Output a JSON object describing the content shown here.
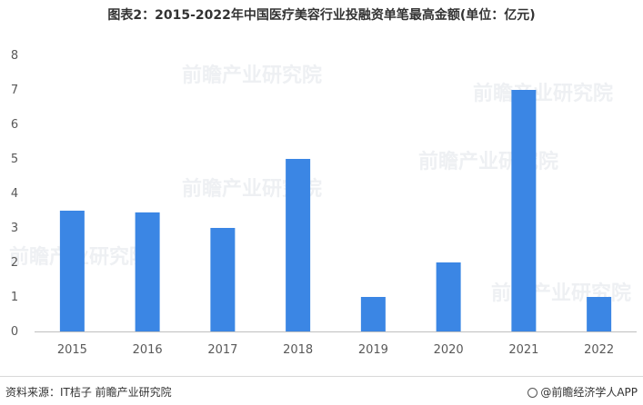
{
  "title": "图表2：2015-2022年中国医疗美容行业投融资单笔最高金额(单位：亿元)",
  "footer": {
    "source": "资料来源：IT桔子 前瞻产业研究院",
    "brand": "@前瞻经济学人APP"
  },
  "watermark": "前瞻产业研究院",
  "colors": {
    "bar": "#3b86e4",
    "axis": "#bfbfbf",
    "text": "#595959"
  },
  "chart_data": {
    "type": "bar",
    "title": "图表2：2015-2022年中国医疗美容行业投融资单笔最高金额(单位：亿元)",
    "xlabel": "",
    "ylabel": "",
    "categories": [
      "2015",
      "2016",
      "2017",
      "2018",
      "2019",
      "2020",
      "2021",
      "2022"
    ],
    "values": [
      3.5,
      3.45,
      3.0,
      5.0,
      1.0,
      2.0,
      7.0,
      1.0
    ],
    "ylim": [
      0,
      8
    ],
    "yticks": [
      "0",
      "1",
      "2",
      "3",
      "4",
      "5",
      "6",
      "7",
      "8"
    ],
    "grid": false,
    "legend": "none"
  }
}
